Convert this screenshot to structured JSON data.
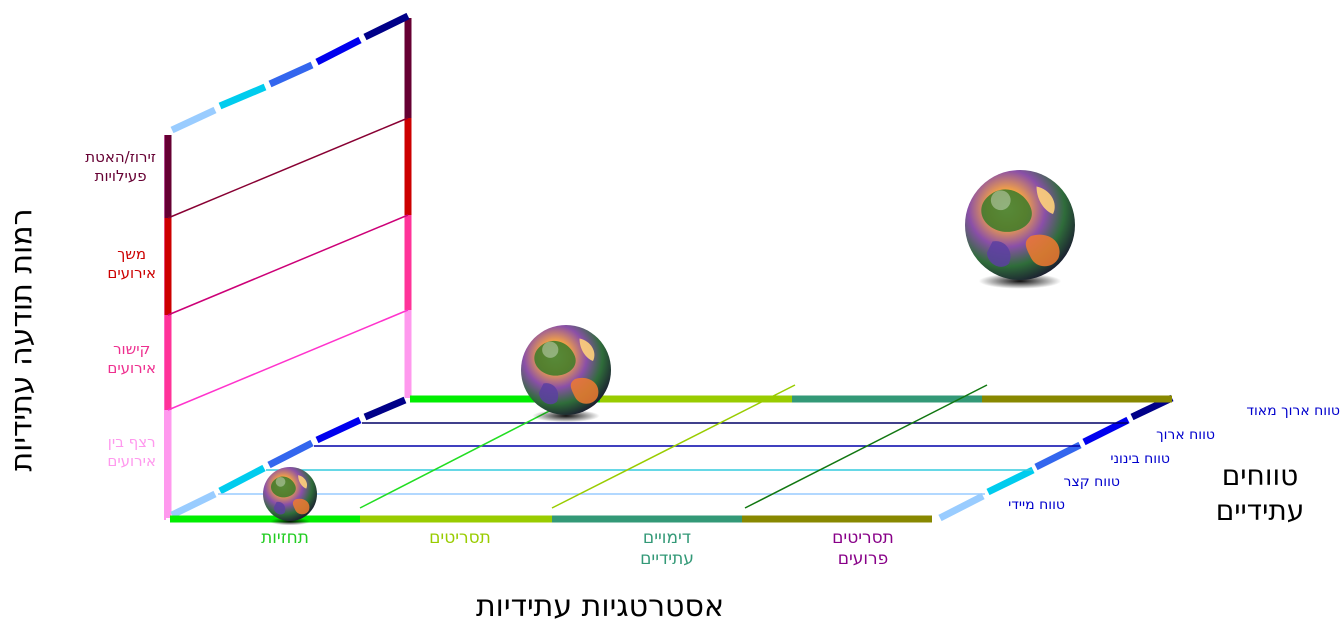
{
  "titles": {
    "vertical_axis": "רמות תודעה עתידיות",
    "horizontal_axis": "אסטרטגיות עתידיות",
    "depth_axis_line1": "טווחים",
    "depth_axis_line2": "עתידיים"
  },
  "awareness_levels": [
    {
      "line1": "רצף בין",
      "line2": "אירועים",
      "color": "#ff99ee"
    },
    {
      "line1": "קישור",
      "line2": "אירועים",
      "color": "#ee2f8f"
    },
    {
      "line1": "משך",
      "line2": "אירועים",
      "color": "#cc0000"
    },
    {
      "line1": "זירוז/האטת",
      "line2": "פעילויות",
      "color": "#660033"
    }
  ],
  "strategies": [
    {
      "line1": "תחזיות",
      "line2": "",
      "color": "#22cc22"
    },
    {
      "line1": "תסריטים",
      "line2": "",
      "color": "#99cc00"
    },
    {
      "line1": "דימויים",
      "line2": "עתידיים",
      "color": "#339977"
    },
    {
      "line1": "תסריטים",
      "line2": "פרועים",
      "color": "#880088"
    }
  ],
  "ranges": [
    {
      "label": "טווח מיידי"
    },
    {
      "label": "טווח קצר"
    },
    {
      "label": "טווח בינוני"
    },
    {
      "label": "טווח ארוך"
    },
    {
      "label": "טווח ארוך מאוד"
    }
  ],
  "colors": {
    "range_text": "#0000cc",
    "range_segments": [
      "#99ccff",
      "#00ccee",
      "#3366ee",
      "#0000ee",
      "#000088"
    ],
    "strategy_bars": [
      "#00ee00",
      "#99cc00",
      "#339977",
      "#888800"
    ],
    "level_bars": [
      "#ff99ee",
      "#ff3399",
      "#cc0000",
      "#660033"
    ]
  },
  "icons": {
    "globe": "globe-icon"
  }
}
